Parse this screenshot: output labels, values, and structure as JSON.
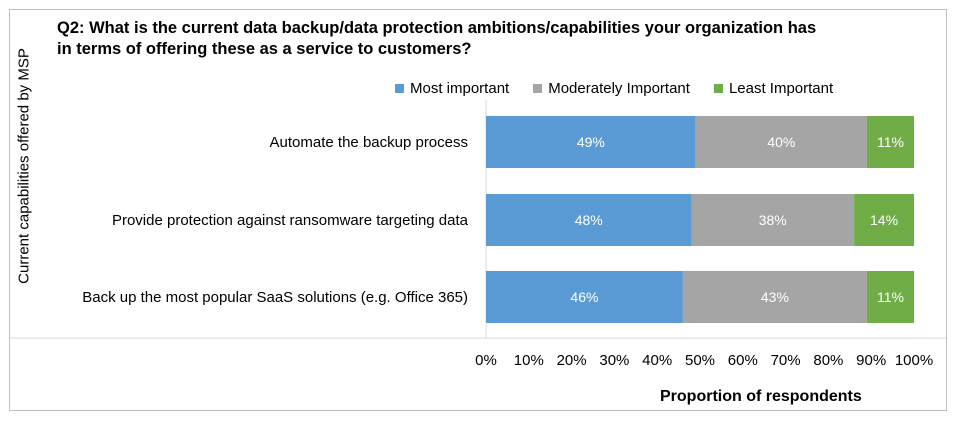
{
  "chart_data": {
    "type": "bar",
    "orientation": "horizontal",
    "stacked": "percent",
    "title": "Q2: What is the current data backup/data protection ambitions/capabilities your organization has in terms of offering these as a service to customers?",
    "xlabel": "Proportion of respondents",
    "ylabel": "Current capabilities offered by MSP",
    "xlim": [
      0,
      100
    ],
    "xticks": [
      "0%",
      "10%",
      "20%",
      "30%",
      "40%",
      "50%",
      "60%",
      "70%",
      "80%",
      "90%",
      "100%"
    ],
    "legend_position": "top",
    "categories": [
      "Automate the backup process",
      "Provide protection against ransomware targeting data",
      "Back up the most popular SaaS solutions (e.g. Office 365)"
    ],
    "series": [
      {
        "name": "Most important",
        "color": "#5b9bd5",
        "values": [
          49,
          48,
          46
        ],
        "labels": [
          "49%",
          "48%",
          "46%"
        ]
      },
      {
        "name": "Moderately Important",
        "color": "#a5a5a5",
        "values": [
          40,
          38,
          43
        ],
        "labels": [
          "40%",
          "38%",
          "43%"
        ]
      },
      {
        "name": "Least Important",
        "color": "#70ad47",
        "values": [
          11,
          14,
          11
        ],
        "labels": [
          "11%",
          "14%",
          "11%"
        ]
      }
    ]
  }
}
